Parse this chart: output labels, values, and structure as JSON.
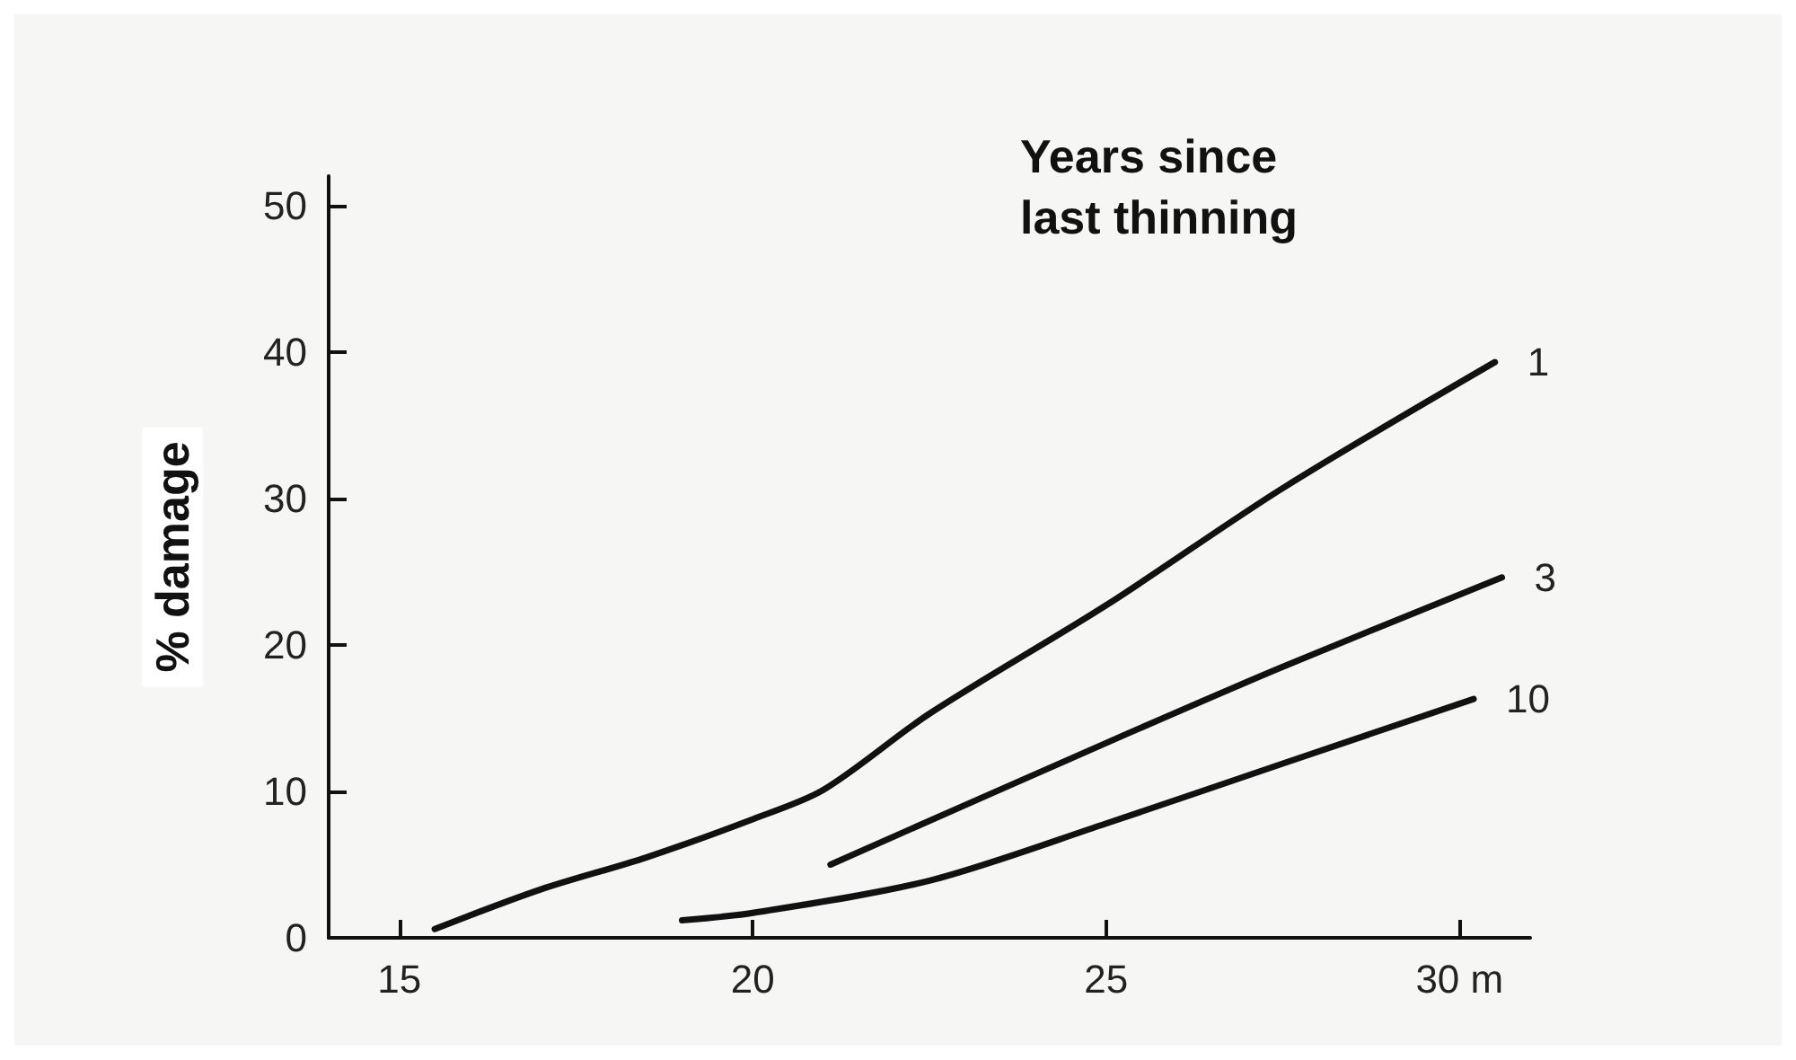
{
  "chart_data": {
    "type": "line",
    "legend_title": "Years since last thinning",
    "ylabel": "% damage",
    "xlim": [
      14,
      31
    ],
    "xticks": [
      15,
      20,
      25,
      {
        "value": 30,
        "label": "30 m"
      }
    ],
    "ylim": [
      0,
      52
    ],
    "yticks": [
      0,
      10,
      20,
      30,
      40,
      50
    ],
    "grid": false,
    "legend": false,
    "marker": "none",
    "line_style": "solid",
    "series": [
      {
        "name": "1",
        "color": "#111111",
        "x": [
          15.5,
          17,
          18.5,
          20,
          21,
          22.5,
          25,
          27.5,
          30.5
        ],
        "values": [
          0.6,
          3.3,
          5.5,
          8.1,
          10.1,
          15.3,
          22.7,
          30.7,
          39.3
        ]
      },
      {
        "name": "3",
        "color": "#111111",
        "x": [
          21.1,
          25,
          27.5,
          30.6
        ],
        "values": [
          5.0,
          13.3,
          18.5,
          24.6
        ]
      },
      {
        "name": "10",
        "color": "#111111",
        "x": [
          19,
          20,
          22.5,
          25,
          27.5,
          30.2
        ],
        "values": [
          1.2,
          1.7,
          3.9,
          7.8,
          11.9,
          16.3
        ]
      }
    ]
  }
}
